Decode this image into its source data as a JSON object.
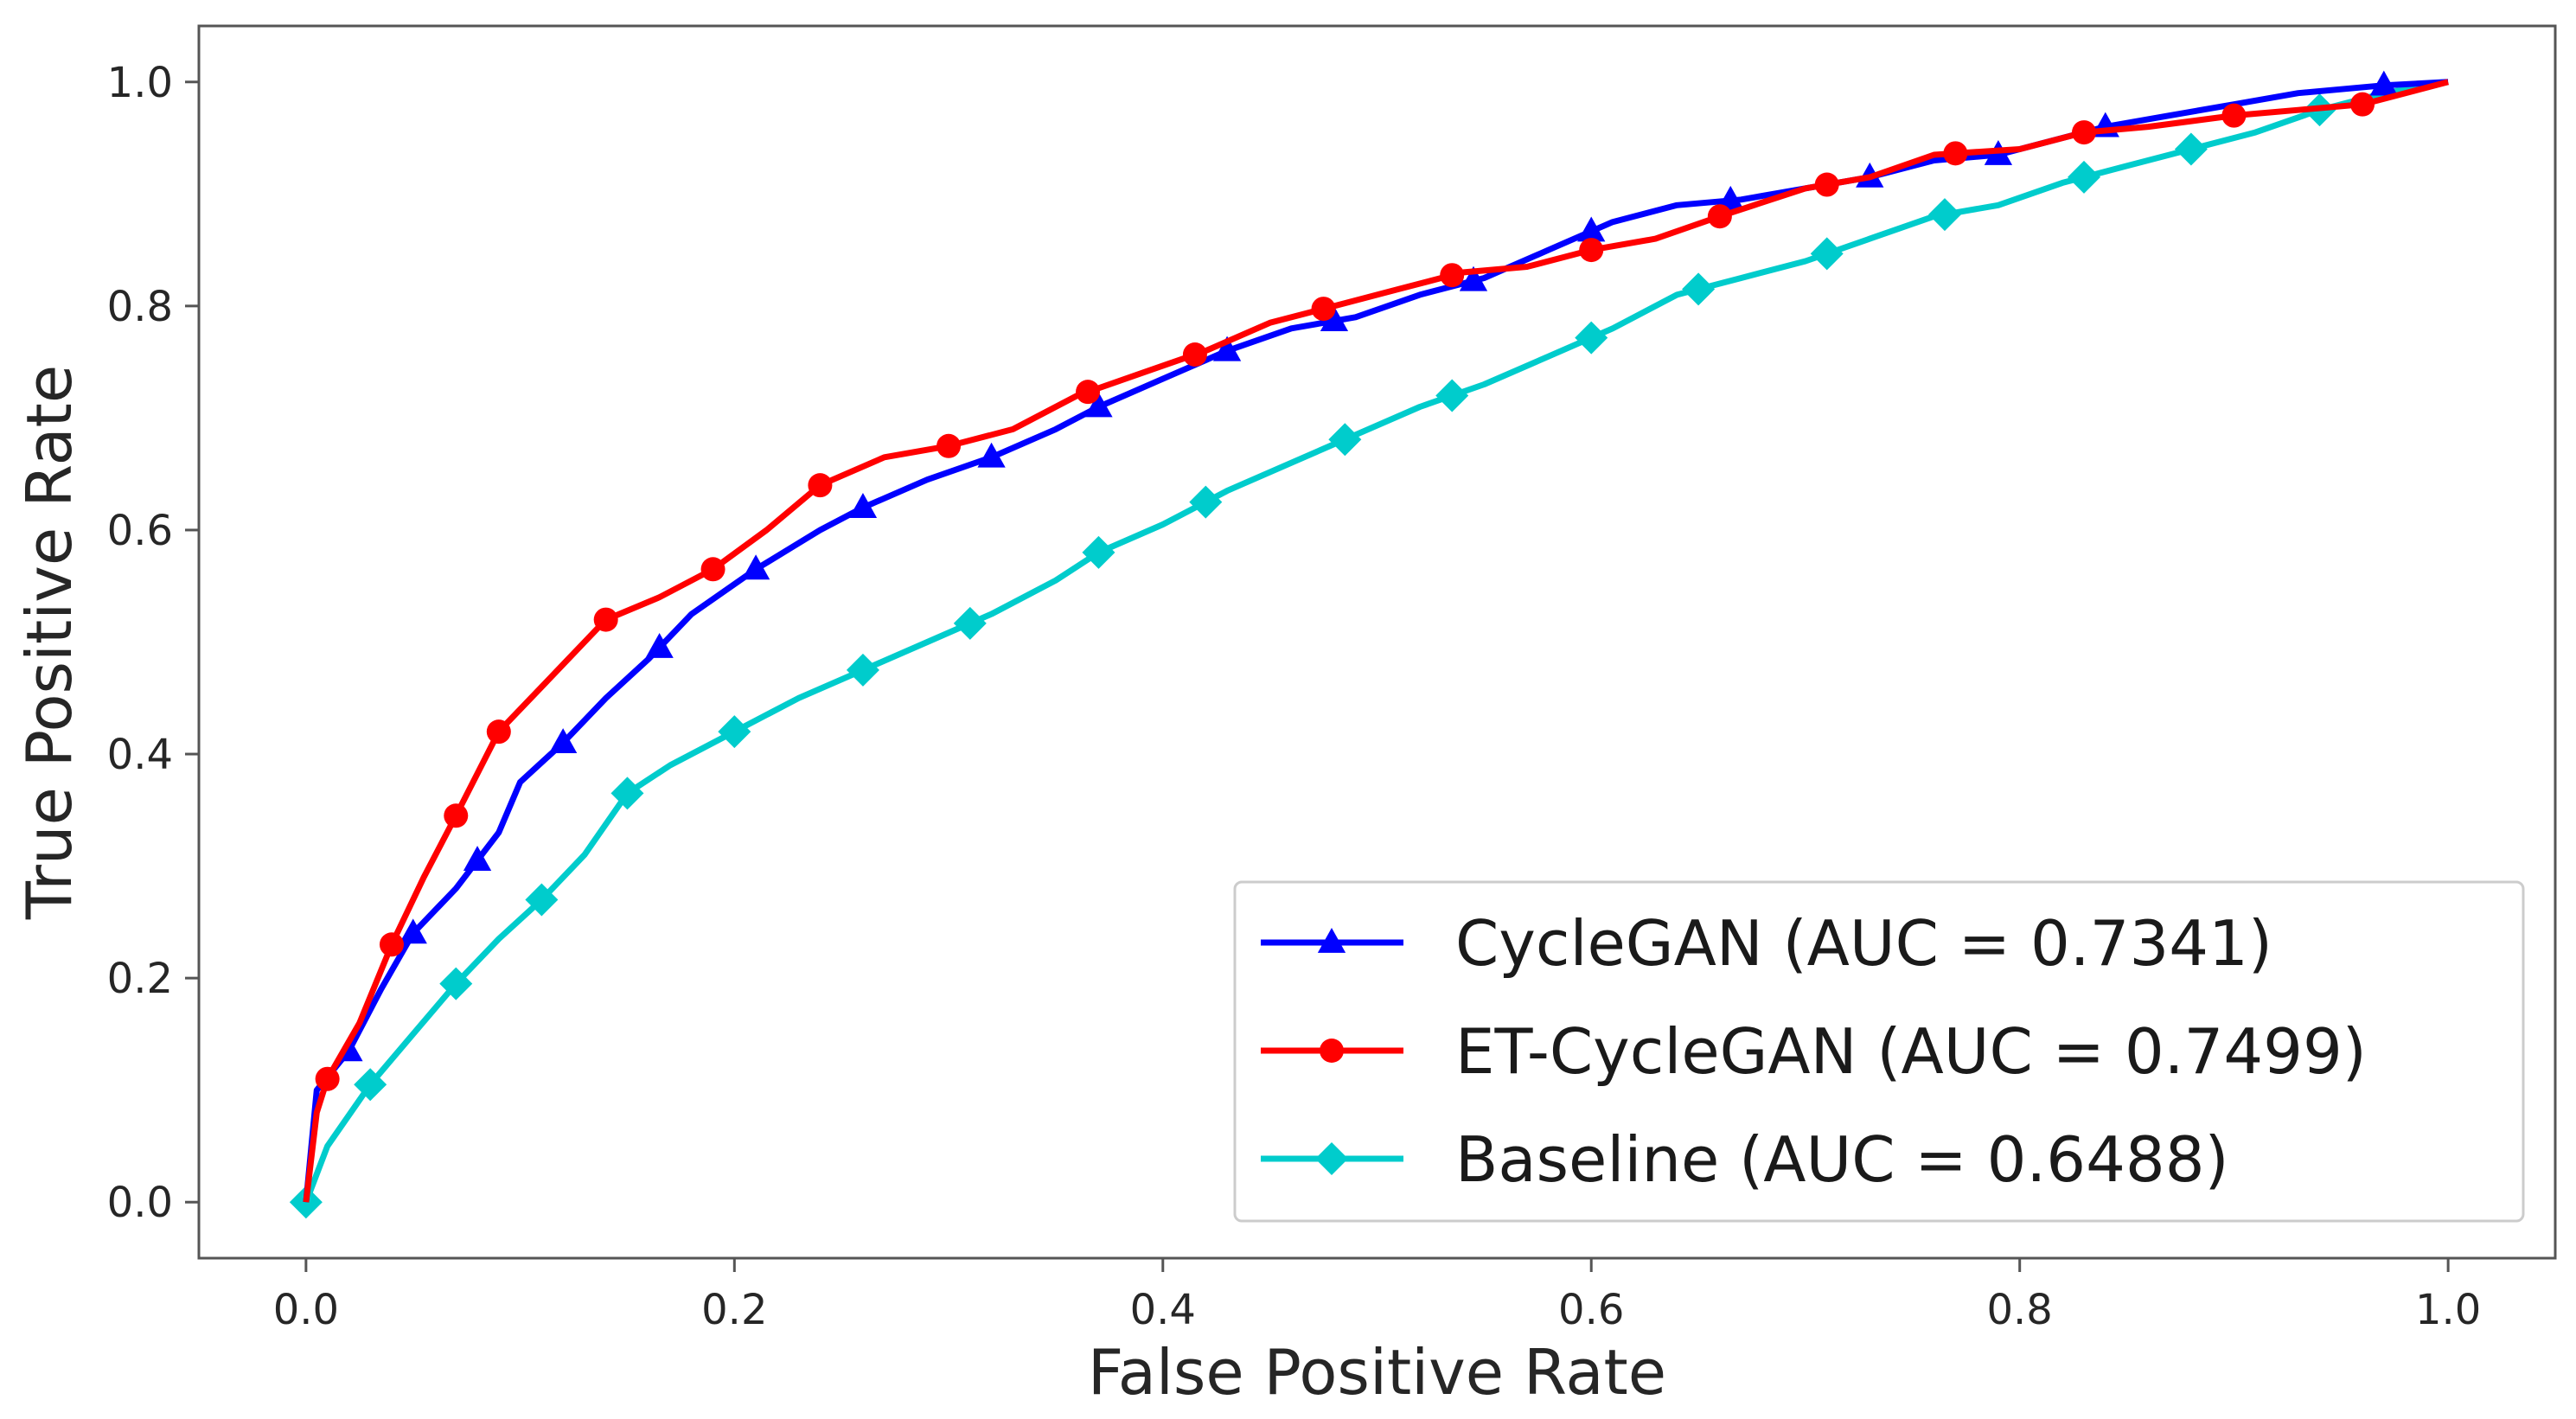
{
  "chart_data": {
    "type": "line",
    "title": "",
    "xlabel": "False Positive Rate",
    "ylabel": "True Positive Rate",
    "xlim": [
      -0.05,
      1.05
    ],
    "ylim": [
      -0.05,
      1.05
    ],
    "xticks": [
      "0.0",
      "0.2",
      "0.4",
      "0.6",
      "0.8",
      "1.0"
    ],
    "yticks": [
      "0.0",
      "0.2",
      "0.4",
      "0.6",
      "0.8",
      "1.0"
    ],
    "legend_position": "bottom-right",
    "grid": false,
    "series": [
      {
        "name": "CycleGAN (AUC = 0.7341)",
        "color": "#0000ff",
        "marker": "triangle",
        "x": [
          0.0,
          0.005,
          0.02,
          0.035,
          0.05,
          0.07,
          0.09,
          0.1,
          0.12,
          0.14,
          0.16,
          0.18,
          0.21,
          0.24,
          0.26,
          0.29,
          0.32,
          0.35,
          0.37,
          0.4,
          0.43,
          0.46,
          0.49,
          0.52,
          0.55,
          0.58,
          0.61,
          0.64,
          0.67,
          0.7,
          0.73,
          0.76,
          0.79,
          0.82,
          0.84,
          0.87,
          0.9,
          0.93,
          0.97,
          1.0
        ],
        "y": [
          0.0,
          0.1,
          0.135,
          0.19,
          0.24,
          0.28,
          0.33,
          0.375,
          0.41,
          0.45,
          0.485,
          0.525,
          0.565,
          0.6,
          0.62,
          0.645,
          0.665,
          0.69,
          0.71,
          0.735,
          0.76,
          0.78,
          0.79,
          0.81,
          0.825,
          0.85,
          0.875,
          0.89,
          0.895,
          0.905,
          0.915,
          0.93,
          0.935,
          0.95,
          0.96,
          0.97,
          0.98,
          0.99,
          0.997,
          1.0
        ],
        "marker_x": [
          0.02,
          0.05,
          0.08,
          0.12,
          0.165,
          0.21,
          0.26,
          0.32,
          0.37,
          0.43,
          0.48,
          0.545,
          0.6,
          0.665,
          0.73,
          0.79,
          0.84,
          0.97
        ]
      },
      {
        "name": "ET-CycleGAN (AUC = 0.7499)",
        "color": "#ff0000",
        "marker": "circle",
        "x": [
          0.0,
          0.005,
          0.01,
          0.025,
          0.04,
          0.055,
          0.07,
          0.09,
          0.11,
          0.13,
          0.14,
          0.165,
          0.19,
          0.215,
          0.24,
          0.27,
          0.3,
          0.33,
          0.36,
          0.39,
          0.42,
          0.45,
          0.48,
          0.51,
          0.54,
          0.57,
          0.6,
          0.63,
          0.66,
          0.7,
          0.73,
          0.76,
          0.8,
          0.83,
          0.86,
          0.9,
          0.93,
          0.96,
          1.0
        ],
        "y": [
          0.0,
          0.08,
          0.11,
          0.16,
          0.23,
          0.29,
          0.345,
          0.42,
          0.46,
          0.5,
          0.52,
          0.54,
          0.565,
          0.6,
          0.64,
          0.665,
          0.675,
          0.69,
          0.72,
          0.74,
          0.76,
          0.785,
          0.8,
          0.815,
          0.83,
          0.835,
          0.85,
          0.86,
          0.88,
          0.905,
          0.915,
          0.935,
          0.94,
          0.955,
          0.96,
          0.97,
          0.975,
          0.98,
          1.0
        ],
        "marker_x": [
          0.01,
          0.04,
          0.07,
          0.09,
          0.14,
          0.19,
          0.24,
          0.3,
          0.365,
          0.415,
          0.475,
          0.535,
          0.6,
          0.66,
          0.71,
          0.77,
          0.83,
          0.9,
          0.96
        ]
      },
      {
        "name": "Baseline (AUC = 0.6488)",
        "color": "#00cccc",
        "marker": "diamond",
        "x": [
          0.0,
          0.01,
          0.03,
          0.05,
          0.07,
          0.09,
          0.11,
          0.13,
          0.15,
          0.17,
          0.2,
          0.23,
          0.26,
          0.29,
          0.32,
          0.35,
          0.37,
          0.4,
          0.43,
          0.46,
          0.49,
          0.52,
          0.55,
          0.58,
          0.61,
          0.64,
          0.67,
          0.7,
          0.73,
          0.76,
          0.79,
          0.82,
          0.85,
          0.88,
          0.91,
          0.94,
          0.97,
          1.0
        ],
        "y": [
          0.0,
          0.05,
          0.105,
          0.15,
          0.195,
          0.235,
          0.27,
          0.31,
          0.365,
          0.39,
          0.42,
          0.45,
          0.475,
          0.5,
          0.525,
          0.555,
          0.58,
          0.605,
          0.635,
          0.66,
          0.685,
          0.71,
          0.73,
          0.755,
          0.78,
          0.81,
          0.825,
          0.84,
          0.86,
          0.88,
          0.89,
          0.91,
          0.925,
          0.94,
          0.955,
          0.975,
          0.99,
          1.0
        ],
        "marker_x": [
          0.0,
          0.03,
          0.07,
          0.11,
          0.15,
          0.2,
          0.26,
          0.31,
          0.37,
          0.42,
          0.485,
          0.535,
          0.6,
          0.65,
          0.71,
          0.765,
          0.83,
          0.88,
          0.94
        ]
      }
    ]
  }
}
